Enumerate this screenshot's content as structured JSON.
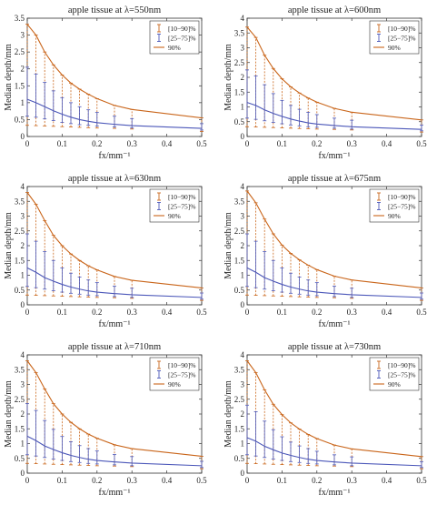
{
  "colors": {
    "orange": "#c9651a",
    "blue": "#4b57b9",
    "axis": "#333333",
    "text": "#222222"
  },
  "chart_data": [
    {
      "type": "line",
      "title": "apple tissue at λ=550nm",
      "xlabel": "fx/mm⁻¹",
      "ylabel": "Median depth/mm",
      "xlim": [
        0,
        0.5
      ],
      "ylim": [
        0,
        3.5
      ],
      "xticks": [
        "0",
        "0.1",
        "0.2",
        "0.3",
        "0.4",
        "0.5"
      ],
      "yticks": [
        "0",
        "0.5",
        "1",
        "1.5",
        "2",
        "2.5",
        "3",
        "3.5"
      ],
      "legend": [
        "[10−90]%",
        "[25−75]%",
        "90%"
      ],
      "legend_position": "top-right",
      "x": [
        0,
        0.025,
        0.05,
        0.075,
        0.1,
        0.125,
        0.15,
        0.175,
        0.2,
        0.25,
        0.3,
        0.5
      ],
      "series": [
        {
          "name": "[10−90]%",
          "values": [
            1.1,
            1.0,
            0.88,
            0.76,
            0.66,
            0.57,
            0.5,
            0.45,
            0.41,
            0.36,
            0.32,
            0.24
          ],
          "lower": [
            0.33,
            0.32,
            0.31,
            0.3,
            0.29,
            0.28,
            0.27,
            0.26,
            0.25,
            0.24,
            0.22,
            0.15
          ],
          "upper": [
            3.32,
            3.0,
            2.5,
            2.12,
            1.82,
            1.58,
            1.4,
            1.25,
            1.12,
            0.92,
            0.8,
            0.55
          ]
        },
        {
          "name": "[25−75]%",
          "values": [
            1.1,
            1.0,
            0.88,
            0.76,
            0.66,
            0.57,
            0.5,
            0.45,
            0.41,
            0.36,
            0.32,
            0.24
          ],
          "lower": [
            0.6,
            0.57,
            0.52,
            0.47,
            0.42,
            0.38,
            0.35,
            0.33,
            0.31,
            0.28,
            0.25,
            0.19
          ],
          "upper": [
            2.05,
            1.85,
            1.6,
            1.35,
            1.15,
            1.0,
            0.88,
            0.79,
            0.71,
            0.6,
            0.53,
            0.38
          ]
        },
        {
          "name": "90%",
          "values": [
            3.32,
            3.0,
            2.5,
            2.12,
            1.82,
            1.58,
            1.4,
            1.25,
            1.12,
            0.92,
            0.8,
            0.55
          ]
        }
      ]
    },
    {
      "type": "line",
      "title": "apple tissue at λ=600nm",
      "xlabel": "fx/mm⁻¹",
      "ylabel": "Median depth/mm",
      "xlim": [
        0,
        0.5
      ],
      "ylim": [
        0,
        4
      ],
      "xticks": [
        "0",
        "0.1",
        "0.2",
        "0.3",
        "0.4",
        "0.5"
      ],
      "yticks": [
        "0",
        "0.5",
        "1",
        "1.5",
        "2",
        "2.5",
        "3",
        "3.5",
        "4"
      ],
      "legend": [
        "[10−90]%",
        "[25−75]%",
        "90%"
      ],
      "legend_position": "top-right",
      "x": [
        0,
        0.025,
        0.05,
        0.075,
        0.1,
        0.125,
        0.15,
        0.175,
        0.2,
        0.25,
        0.3,
        0.5
      ],
      "series": [
        {
          "name": "[10−90]%",
          "values": [
            1.15,
            1.05,
            0.9,
            0.78,
            0.68,
            0.59,
            0.52,
            0.46,
            0.42,
            0.37,
            0.33,
            0.24
          ],
          "lower": [
            0.33,
            0.32,
            0.31,
            0.3,
            0.29,
            0.28,
            0.27,
            0.26,
            0.25,
            0.24,
            0.22,
            0.15
          ],
          "upper": [
            3.7,
            3.35,
            2.75,
            2.3,
            1.95,
            1.68,
            1.47,
            1.3,
            1.16,
            0.95,
            0.82,
            0.56
          ]
        },
        {
          "name": "[25−75]%",
          "values": [
            1.15,
            1.05,
            0.9,
            0.78,
            0.68,
            0.59,
            0.52,
            0.46,
            0.42,
            0.37,
            0.33,
            0.24
          ],
          "lower": [
            0.62,
            0.58,
            0.53,
            0.48,
            0.43,
            0.39,
            0.36,
            0.33,
            0.31,
            0.28,
            0.25,
            0.19
          ],
          "upper": [
            2.25,
            2.05,
            1.75,
            1.45,
            1.22,
            1.05,
            0.92,
            0.82,
            0.74,
            0.62,
            0.55,
            0.39
          ]
        },
        {
          "name": "90%",
          "values": [
            3.7,
            3.35,
            2.75,
            2.3,
            1.95,
            1.68,
            1.47,
            1.3,
            1.16,
            0.95,
            0.82,
            0.56
          ]
        }
      ]
    },
    {
      "type": "line",
      "title": "apple tissue at λ=630nm",
      "xlabel": "fx/mm⁻¹",
      "ylabel": "Median depth/mm",
      "xlim": [
        0,
        0.5
      ],
      "ylim": [
        0,
        4
      ],
      "xticks": [
        "0",
        "0.1",
        "0.2",
        "0.3",
        "0.4",
        "0.5"
      ],
      "yticks": [
        "0",
        "0.5",
        "1",
        "1.5",
        "2",
        "2.5",
        "3",
        "3.5",
        "4"
      ],
      "legend": [
        "[10−90]%",
        "[25−75]%",
        "90%"
      ],
      "legend_position": "top-right",
      "x": [
        0,
        0.025,
        0.05,
        0.075,
        0.1,
        0.125,
        0.15,
        0.175,
        0.2,
        0.25,
        0.3,
        0.5
      ],
      "series": [
        {
          "name": "[10−90]%",
          "values": [
            1.25,
            1.1,
            0.92,
            0.8,
            0.69,
            0.6,
            0.53,
            0.47,
            0.43,
            0.38,
            0.34,
            0.25
          ],
          "lower": [
            0.33,
            0.32,
            0.31,
            0.3,
            0.29,
            0.28,
            0.27,
            0.26,
            0.25,
            0.24,
            0.22,
            0.15
          ],
          "upper": [
            3.8,
            3.4,
            2.85,
            2.35,
            2.0,
            1.72,
            1.5,
            1.32,
            1.18,
            0.96,
            0.83,
            0.57
          ]
        },
        {
          "name": "[25−75]%",
          "values": [
            1.25,
            1.1,
            0.92,
            0.8,
            0.69,
            0.6,
            0.53,
            0.47,
            0.43,
            0.38,
            0.34,
            0.25
          ],
          "lower": [
            0.62,
            0.58,
            0.53,
            0.48,
            0.43,
            0.39,
            0.36,
            0.33,
            0.31,
            0.28,
            0.25,
            0.19
          ],
          "upper": [
            2.4,
            2.15,
            1.8,
            1.5,
            1.25,
            1.07,
            0.94,
            0.84,
            0.75,
            0.63,
            0.56,
            0.4
          ]
        },
        {
          "name": "90%",
          "values": [
            3.8,
            3.4,
            2.85,
            2.35,
            2.0,
            1.72,
            1.5,
            1.32,
            1.18,
            0.96,
            0.83,
            0.57
          ]
        }
      ]
    },
    {
      "type": "line",
      "title": "apple tissue at λ=675nm",
      "xlabel": "fx/mm⁻¹",
      "ylabel": "Median depth/mm",
      "xlim": [
        0,
        0.5
      ],
      "ylim": [
        0,
        4
      ],
      "xticks": [
        "0",
        "0.1",
        "0.2",
        "0.3",
        "0.4",
        "0.5"
      ],
      "yticks": [
        "0",
        "0.5",
        "1",
        "1.5",
        "2",
        "2.5",
        "3",
        "3.5",
        "4"
      ],
      "legend": [
        "[10−90]%",
        "[25−75]%",
        "90%"
      ],
      "legend_position": "top-right",
      "x": [
        0,
        0.025,
        0.05,
        0.075,
        0.1,
        0.125,
        0.15,
        0.175,
        0.2,
        0.25,
        0.3,
        0.5
      ],
      "series": [
        {
          "name": "[10−90]%",
          "values": [
            1.25,
            1.1,
            0.92,
            0.8,
            0.69,
            0.6,
            0.53,
            0.47,
            0.43,
            0.38,
            0.34,
            0.25
          ],
          "lower": [
            0.33,
            0.32,
            0.31,
            0.3,
            0.29,
            0.28,
            0.27,
            0.26,
            0.25,
            0.24,
            0.22,
            0.15
          ],
          "upper": [
            3.85,
            3.45,
            2.9,
            2.4,
            2.02,
            1.74,
            1.52,
            1.34,
            1.19,
            0.97,
            0.84,
            0.57
          ]
        },
        {
          "name": "[25−75]%",
          "values": [
            1.25,
            1.1,
            0.92,
            0.8,
            0.69,
            0.6,
            0.53,
            0.47,
            0.43,
            0.38,
            0.34,
            0.25
          ],
          "lower": [
            0.62,
            0.58,
            0.53,
            0.48,
            0.43,
            0.39,
            0.36,
            0.33,
            0.31,
            0.28,
            0.25,
            0.19
          ],
          "upper": [
            2.4,
            2.15,
            1.8,
            1.5,
            1.25,
            1.07,
            0.94,
            0.84,
            0.75,
            0.63,
            0.56,
            0.4
          ]
        },
        {
          "name": "90%",
          "values": [
            3.85,
            3.45,
            2.9,
            2.4,
            2.02,
            1.74,
            1.52,
            1.34,
            1.19,
            0.97,
            0.84,
            0.57
          ]
        }
      ]
    },
    {
      "type": "line",
      "title": "apple tissue at λ=710nm",
      "xlabel": "fx/mm⁻¹",
      "ylabel": "Median depth/mm",
      "xlim": [
        0,
        0.5
      ],
      "ylim": [
        0,
        4
      ],
      "xticks": [
        "0",
        "0.1",
        "0.2",
        "0.3",
        "0.4",
        "0.5"
      ],
      "yticks": [
        "0",
        "0.5",
        "1",
        "1.5",
        "2",
        "2.5",
        "3",
        "3.5",
        "4"
      ],
      "legend": [
        "[10−90]%",
        "[25−75]%",
        "90%"
      ],
      "legend_position": "top-right",
      "x": [
        0,
        0.025,
        0.05,
        0.075,
        0.1,
        0.125,
        0.15,
        0.175,
        0.2,
        0.25,
        0.3,
        0.5
      ],
      "series": [
        {
          "name": "[10−90]%",
          "values": [
            1.25,
            1.1,
            0.92,
            0.8,
            0.69,
            0.6,
            0.53,
            0.47,
            0.43,
            0.38,
            0.34,
            0.25
          ],
          "lower": [
            0.33,
            0.32,
            0.31,
            0.3,
            0.29,
            0.28,
            0.27,
            0.26,
            0.25,
            0.24,
            0.22,
            0.15
          ],
          "upper": [
            3.8,
            3.4,
            2.85,
            2.35,
            2.0,
            1.72,
            1.5,
            1.32,
            1.18,
            0.96,
            0.83,
            0.57
          ]
        },
        {
          "name": "[25−75]%",
          "values": [
            1.25,
            1.1,
            0.92,
            0.8,
            0.69,
            0.6,
            0.53,
            0.47,
            0.43,
            0.38,
            0.34,
            0.25
          ],
          "lower": [
            0.62,
            0.58,
            0.53,
            0.48,
            0.43,
            0.39,
            0.36,
            0.33,
            0.31,
            0.28,
            0.25,
            0.19
          ],
          "upper": [
            2.35,
            2.12,
            1.78,
            1.48,
            1.24,
            1.06,
            0.93,
            0.83,
            0.75,
            0.63,
            0.56,
            0.4
          ]
        },
        {
          "name": "90%",
          "values": [
            3.8,
            3.4,
            2.85,
            2.35,
            2.0,
            1.72,
            1.5,
            1.32,
            1.18,
            0.96,
            0.83,
            0.57
          ]
        }
      ]
    },
    {
      "type": "line",
      "title": "apple tissue at λ=730nm",
      "xlabel": "fx/mm⁻¹",
      "ylabel": "Median depth/mm",
      "xlim": [
        0,
        0.5
      ],
      "ylim": [
        0,
        4
      ],
      "xticks": [
        "0",
        "0.1",
        "0.2",
        "0.3",
        "0.4",
        "0.5"
      ],
      "yticks": [
        "0",
        "0.5",
        "1",
        "1.5",
        "2",
        "2.5",
        "3",
        "3.5",
        "4"
      ],
      "legend": [
        "[10−90]%",
        "[25−75]%",
        "90%"
      ],
      "legend_position": "top-right",
      "x": [
        0,
        0.025,
        0.05,
        0.075,
        0.1,
        0.125,
        0.15,
        0.175,
        0.2,
        0.25,
        0.3,
        0.5
      ],
      "series": [
        {
          "name": "[10−90]%",
          "values": [
            1.2,
            1.08,
            0.91,
            0.79,
            0.68,
            0.6,
            0.53,
            0.47,
            0.43,
            0.38,
            0.34,
            0.25
          ],
          "lower": [
            0.33,
            0.32,
            0.31,
            0.3,
            0.29,
            0.28,
            0.27,
            0.26,
            0.25,
            0.24,
            0.22,
            0.15
          ],
          "upper": [
            3.8,
            3.4,
            2.82,
            2.33,
            1.98,
            1.7,
            1.49,
            1.31,
            1.17,
            0.95,
            0.82,
            0.56
          ]
        },
        {
          "name": "[25−75]%",
          "values": [
            1.2,
            1.08,
            0.91,
            0.79,
            0.68,
            0.6,
            0.53,
            0.47,
            0.43,
            0.38,
            0.34,
            0.25
          ],
          "lower": [
            0.62,
            0.58,
            0.53,
            0.48,
            0.43,
            0.39,
            0.36,
            0.33,
            0.31,
            0.28,
            0.25,
            0.19
          ],
          "upper": [
            2.3,
            2.08,
            1.76,
            1.47,
            1.23,
            1.05,
            0.92,
            0.83,
            0.74,
            0.62,
            0.55,
            0.39
          ]
        },
        {
          "name": "90%",
          "values": [
            3.8,
            3.4,
            2.82,
            2.33,
            1.98,
            1.7,
            1.49,
            1.31,
            1.17,
            0.95,
            0.82,
            0.56
          ]
        }
      ]
    }
  ]
}
